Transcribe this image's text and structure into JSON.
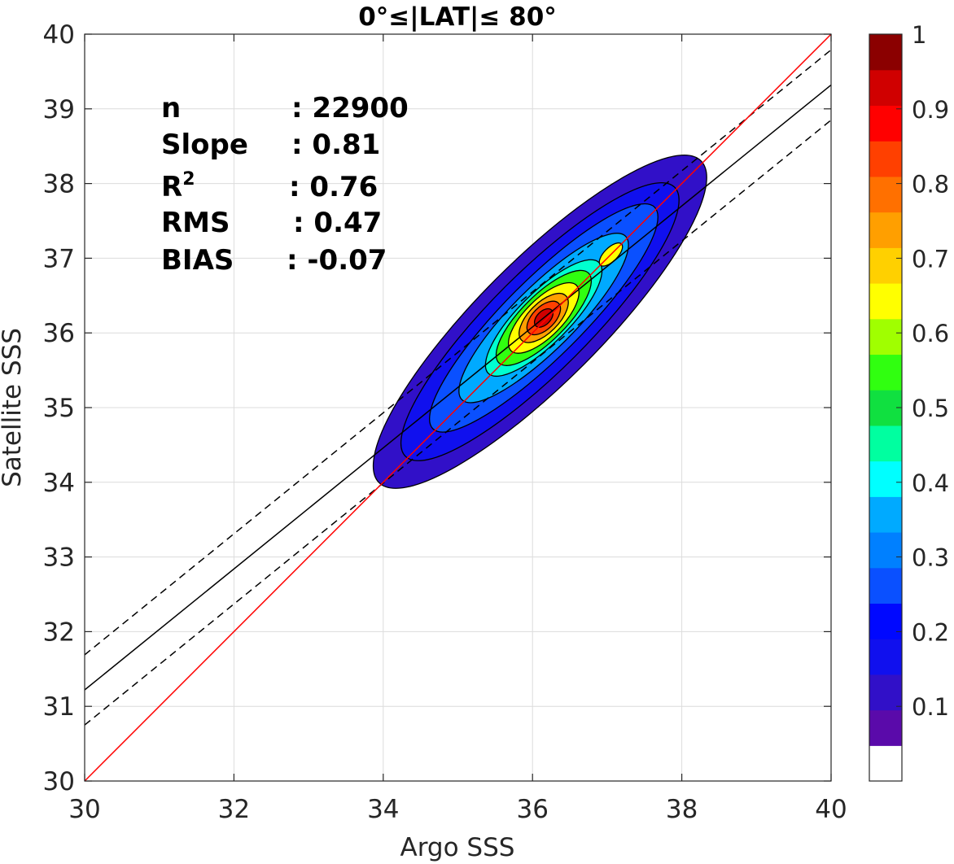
{
  "chart_data": {
    "type": "contour",
    "title": "0°≤|LAT|≤ 80°",
    "xlabel": "Argo SSS",
    "ylabel": "Satellite SSS",
    "xlim": [
      30,
      40
    ],
    "ylim": [
      30,
      40
    ],
    "x_ticks": [
      "30",
      "32",
      "34",
      "36",
      "38",
      "40"
    ],
    "y_ticks": [
      "30",
      "31",
      "32",
      "33",
      "34",
      "35",
      "36",
      "37",
      "38",
      "39",
      "40"
    ],
    "grid": true,
    "stats": [
      {
        "name": "n",
        "sep": ": ",
        "value": "22900"
      },
      {
        "name": "Slope",
        "sep": ": ",
        "value": "0.81"
      },
      {
        "name": "R",
        "sup": "2",
        "sep": ": ",
        "value": "0.76"
      },
      {
        "name": "RMS",
        "sep": ": ",
        "value": "0.47"
      },
      {
        "name": "BIAS",
        "sep": ": ",
        "value": "-0.07"
      }
    ],
    "lines": {
      "one_to_one": {
        "color": "#ff0000",
        "x": [
          30,
          40
        ],
        "y": [
          30,
          40
        ]
      },
      "regression": {
        "color": "#000000",
        "x": [
          30,
          40
        ],
        "y": [
          31.22,
          39.32
        ]
      },
      "rms_upper": {
        "color": "#000000",
        "dash": true,
        "x": [
          30,
          40
        ],
        "y": [
          31.69,
          39.79
        ]
      },
      "rms_lower": {
        "color": "#000000",
        "dash": true,
        "x": [
          30,
          40
        ],
        "y": [
          30.75,
          38.85
        ]
      }
    },
    "density_peak": {
      "x": 36.15,
      "y": 36.2
    },
    "contour_levels": [
      {
        "level": 0.05,
        "color": "#3110c8",
        "center": [
          36.1,
          36.15
        ],
        "a": 3.05,
        "b": 0.82,
        "angle": 45
      },
      {
        "level": 0.1,
        "color": "#1010ee",
        "center": [
          36.1,
          36.15
        ],
        "a": 2.55,
        "b": 0.66,
        "angle": 45
      },
      {
        "level": 0.2,
        "color": "#0a50ff",
        "center": [
          36.15,
          36.2
        ],
        "a": 2.1,
        "b": 0.52,
        "angle": 45
      },
      {
        "level": 0.3,
        "color": "#00aaff",
        "center": [
          36.15,
          36.2
        ],
        "a": 1.55,
        "b": 0.42,
        "angle": 45
      },
      {
        "level": 0.4,
        "color": "#00ffd0",
        "center": [
          36.15,
          36.2
        ],
        "a": 1.05,
        "b": 0.34,
        "angle": 45
      },
      {
        "level": 0.5,
        "color": "#30ff10",
        "center": [
          36.15,
          36.2
        ],
        "a": 0.85,
        "b": 0.3,
        "angle": 45
      },
      {
        "level": 0.6,
        "color": "#ffff00",
        "center": [
          36.15,
          36.2
        ],
        "a": 0.62,
        "b": 0.25,
        "angle": 45
      },
      {
        "level": 0.7,
        "color": "#ff9f00",
        "center": [
          36.15,
          36.2
        ],
        "a": 0.42,
        "b": 0.2,
        "angle": 45
      },
      {
        "level": 0.8,
        "color": "#ff4000",
        "center": [
          36.15,
          36.2
        ],
        "a": 0.28,
        "b": 0.15,
        "angle": 45
      },
      {
        "level": 0.9,
        "color": "#d00000",
        "center": [
          36.15,
          36.2
        ],
        "a": 0.15,
        "b": 0.09,
        "angle": 45
      }
    ],
    "secondary_lobe": {
      "color": "#ffff00",
      "center": [
        37.05,
        37.05
      ],
      "a": 0.2,
      "b": 0.09,
      "angle": 45
    },
    "colorbar": {
      "min": 0,
      "max": 1,
      "ticks": [
        "0.1",
        "0.2",
        "0.3",
        "0.4",
        "0.5",
        "0.6",
        "0.7",
        "0.8",
        "0.9",
        "1"
      ],
      "colors": [
        "#ffffff",
        "#5a0aaa",
        "#3110c8",
        "#1010ee",
        "#0008ff",
        "#0a50ff",
        "#0080ff",
        "#00aaff",
        "#00ffff",
        "#00ffa0",
        "#10e040",
        "#30ff10",
        "#a0ff00",
        "#ffff00",
        "#ffd000",
        "#ff9f00",
        "#ff7000",
        "#ff4000",
        "#ff0000",
        "#d00000",
        "#8b0000"
      ]
    }
  }
}
